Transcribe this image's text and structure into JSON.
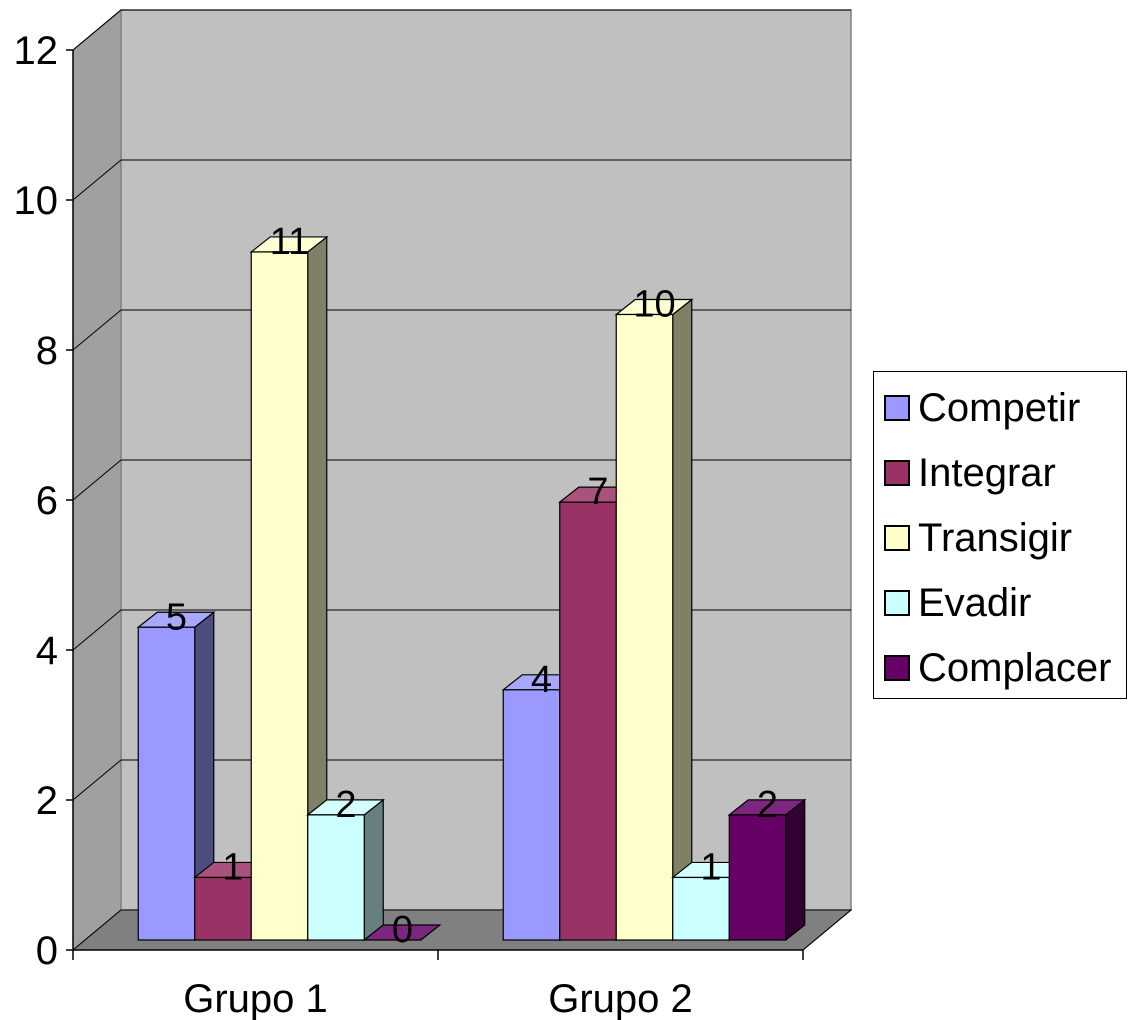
{
  "chart_data": {
    "type": "bar",
    "categories": [
      "Grupo 1",
      "Grupo 2"
    ],
    "series": [
      {
        "name": "Competir",
        "values": [
          5,
          4
        ],
        "color": "#9999ff"
      },
      {
        "name": "Integrar",
        "values": [
          1,
          7
        ],
        "color": "#993366"
      },
      {
        "name": "Transigir",
        "values": [
          11,
          10
        ],
        "color": "#ffffcc"
      },
      {
        "name": "Evadir",
        "values": [
          2,
          1
        ],
        "color": "#ccffff"
      },
      {
        "name": "Complacer",
        "values": [
          0,
          2
        ],
        "color": "#660066"
      }
    ],
    "ylim": [
      0,
      12
    ],
    "yticks": [
      "0",
      "2",
      "4",
      "6",
      "8",
      "10",
      "12"
    ],
    "grid": true,
    "legend_position": "right",
    "style": "3d-clustered-column",
    "wall_color": "#c0c0c0",
    "floor_color": "#808080"
  }
}
